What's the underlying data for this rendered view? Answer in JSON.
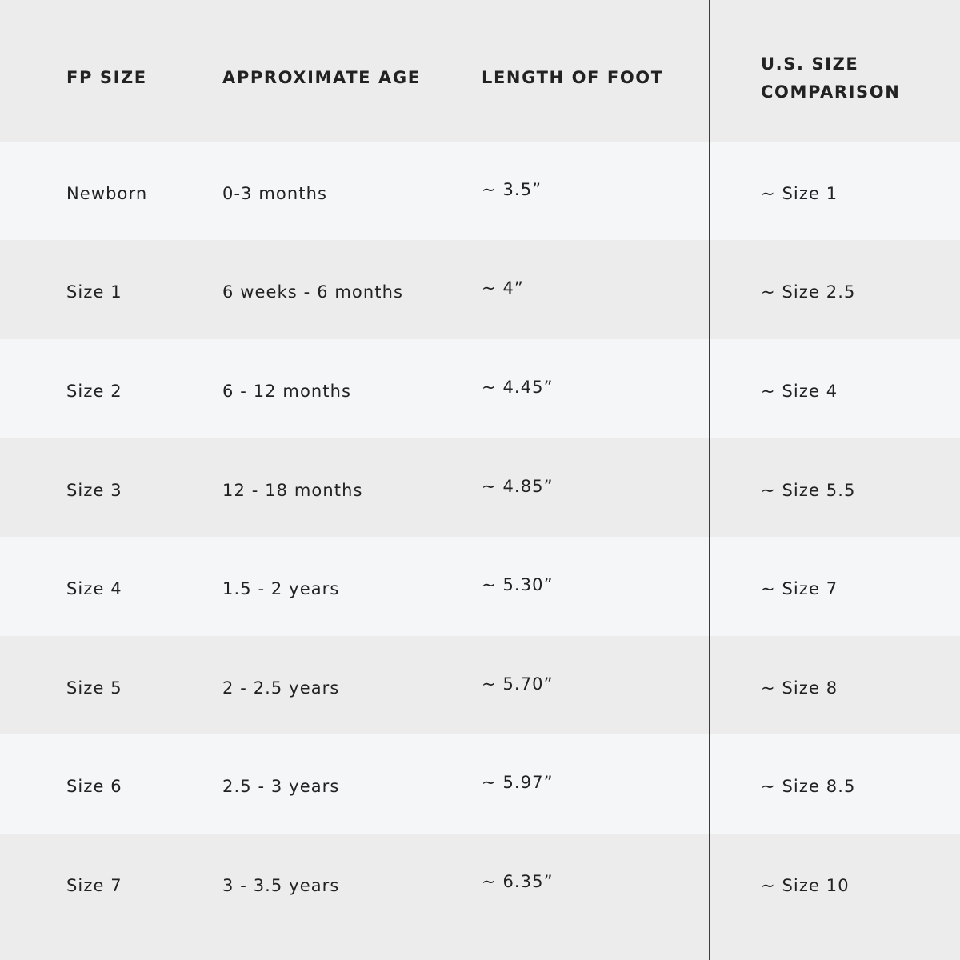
{
  "headers": [
    "FP SIZE",
    "APPROXIMATE AGE",
    "LENGTH OF FOOT",
    "U.S. SIZE COMPARISON"
  ],
  "rows": [
    {
      "fp_size": "Newborn",
      "age": "0-3 months",
      "length": "~ 3.5”",
      "us_size": "~ Size 1"
    },
    {
      "fp_size": "Size 1",
      "age": "6 weeks - 6 months",
      "length": "~ 4”",
      "us_size": "~ Size 2.5"
    },
    {
      "fp_size": "Size 2",
      "age": "6 - 12 months",
      "length": "~ 4.45”",
      "us_size": "~ Size 4"
    },
    {
      "fp_size": "Size 3",
      "age": "12 - 18 months",
      "length": "~ 4.85”",
      "us_size": "~ Size 5.5"
    },
    {
      "fp_size": "Size 4",
      "age": "1.5 - 2 years",
      "length": "~ 5.30”",
      "us_size": "~ Size 7"
    },
    {
      "fp_size": "Size 5",
      "age": "2 - 2.5 years",
      "length": "~ 5.70”",
      "us_size": "~ Size 8"
    },
    {
      "fp_size": "Size 6",
      "age": "2.5 - 3 years",
      "length": "~ 5.97”",
      "us_size": "~ Size 8.5"
    },
    {
      "fp_size": "Size 7",
      "age": "3 - 3.5 years",
      "length": "~ 6.35”",
      "us_size": "~ Size 10"
    }
  ],
  "colors": {
    "header_bg": "#ececec",
    "row_light": "#f5f6f8",
    "row_dark": "#ececec",
    "text": "#222222",
    "divider": "#3c3c3c"
  }
}
